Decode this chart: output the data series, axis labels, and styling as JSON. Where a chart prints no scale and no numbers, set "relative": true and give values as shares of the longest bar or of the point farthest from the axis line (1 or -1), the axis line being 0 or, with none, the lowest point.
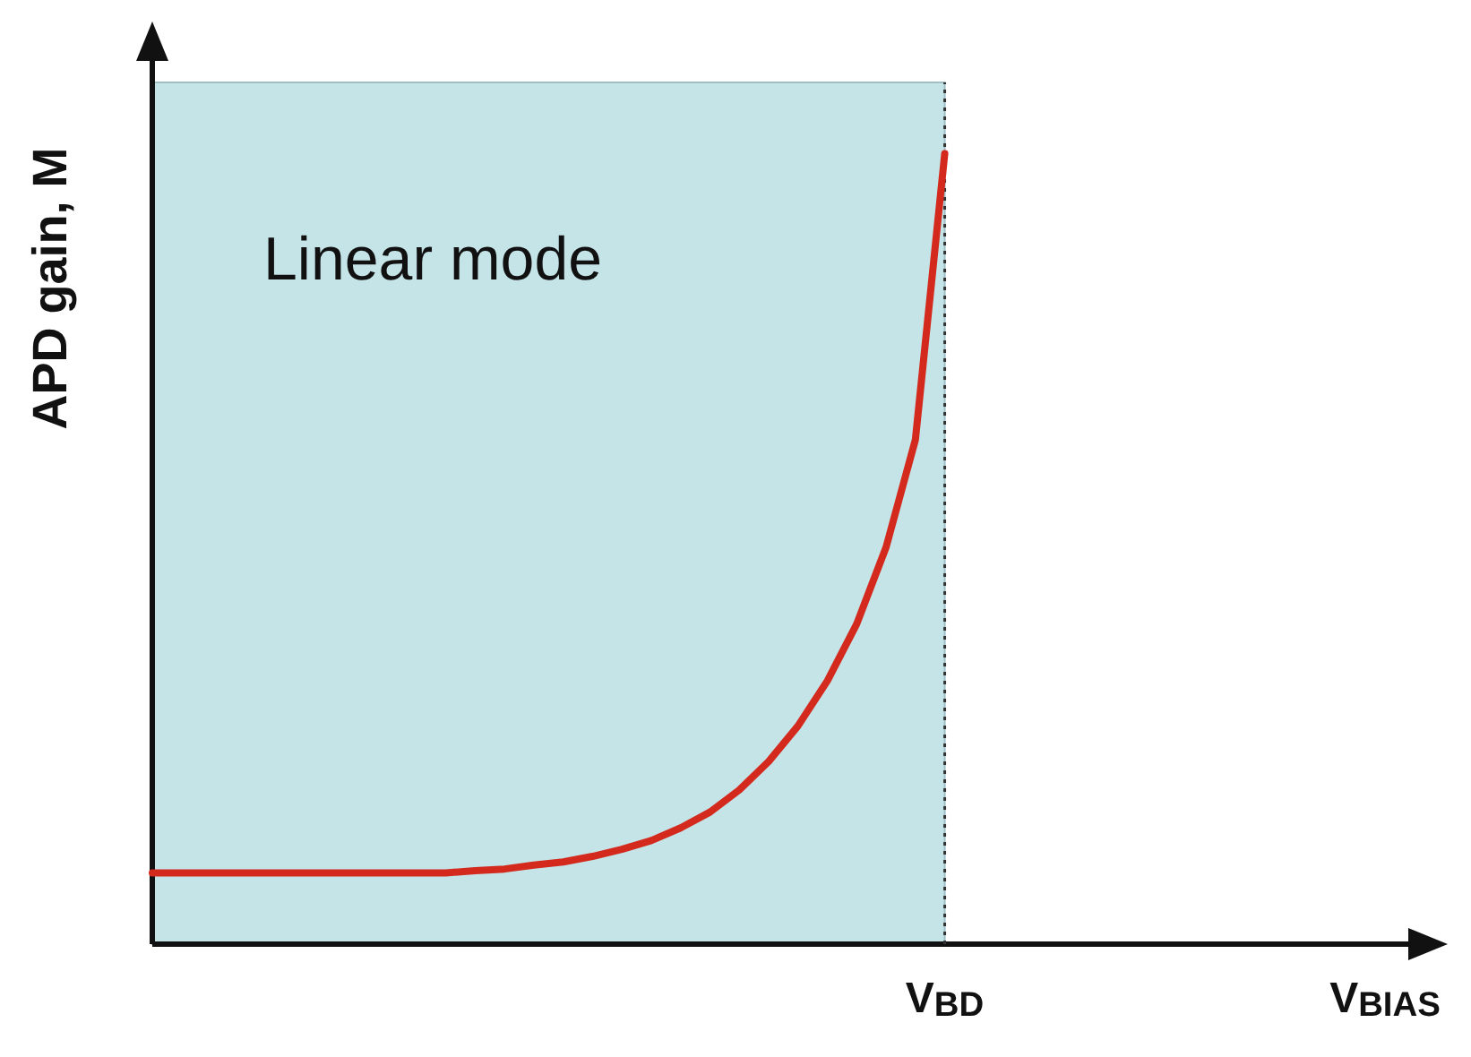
{
  "chart_data": {
    "type": "line",
    "relative": true,
    "ylabel": "APD gain, M",
    "categories": [
      null,
      null,
      null,
      null,
      null,
      null,
      null,
      null,
      null,
      null,
      null,
      null,
      null,
      null,
      null,
      null,
      null,
      null,
      null,
      null,
      null,
      null,
      null,
      null,
      null,
      null,
      null,
      "V$_{BD}$",
      null,
      null,
      null,
      null,
      null,
      null,
      null,
      null,
      null,
      null,
      null,
      null,
      null,
      null,
      "V$_{BIAS}$"
    ],
    "series": [
      {
        "color": "#d42a1e",
        "values": [
          0.09,
          0.09,
          0.09,
          0.09,
          0.09,
          0.09,
          0.09,
          0.09,
          0.09,
          0.09,
          0.09,
          0.093,
          0.095,
          0.1,
          0.104,
          0.111,
          0.12,
          0.131,
          0.147,
          0.167,
          0.195,
          0.231,
          0.276,
          0.333,
          0.405,
          0.502,
          0.638,
          1.0,
          null,
          null,
          null,
          null,
          null,
          null,
          null,
          null,
          null,
          null,
          null,
          null,
          null,
          null,
          null
        ]
      }
    ],
    "annotations": [
      "Linear mode"
    ],
    "ref_lines": [
      {
        "axis": "x",
        "value": "V$_{BD}$",
        "line_style": "dotted",
        "color": "#333333"
      }
    ],
    "marker": "none",
    "line_style": "solid",
    "grid": false
  }
}
